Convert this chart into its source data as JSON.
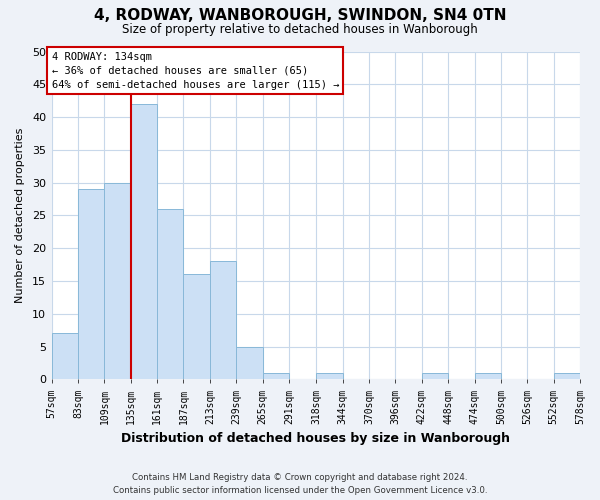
{
  "title": "4, RODWAY, WANBOROUGH, SWINDON, SN4 0TN",
  "subtitle": "Size of property relative to detached houses in Wanborough",
  "xlabel": "Distribution of detached houses by size in Wanborough",
  "ylabel": "Number of detached properties",
  "bar_color": "#cce0f5",
  "bar_edge_color": "#88b8d8",
  "bin_edges": [
    57,
    83,
    109,
    135,
    161,
    187,
    213,
    239,
    265,
    291,
    318,
    344,
    370,
    396,
    422,
    448,
    474,
    500,
    526,
    552,
    578
  ],
  "bin_labels": [
    "57sqm",
    "83sqm",
    "109sqm",
    "135sqm",
    "161sqm",
    "187sqm",
    "213sqm",
    "239sqm",
    "265sqm",
    "291sqm",
    "318sqm",
    "344sqm",
    "370sqm",
    "396sqm",
    "422sqm",
    "448sqm",
    "474sqm",
    "500sqm",
    "526sqm",
    "552sqm",
    "578sqm"
  ],
  "counts": [
    7,
    29,
    30,
    42,
    26,
    16,
    18,
    5,
    1,
    0,
    1,
    0,
    0,
    0,
    1,
    0,
    1,
    0,
    0,
    1
  ],
  "ylim": [
    0,
    50
  ],
  "yticks": [
    0,
    5,
    10,
    15,
    20,
    25,
    30,
    35,
    40,
    45,
    50
  ],
  "property_line_x": 135,
  "annotation_text_line1": "4 RODWAY: 134sqm",
  "annotation_text_line2": "← 36% of detached houses are smaller (65)",
  "annotation_text_line3": "64% of semi-detached houses are larger (115) →",
  "annotation_box_color": "#ffffff",
  "annotation_box_edge_color": "#cc0000",
  "property_line_color": "#cc0000",
  "footer_line1": "Contains HM Land Registry data © Crown copyright and database right 2024.",
  "footer_line2": "Contains public sector information licensed under the Open Government Licence v3.0.",
  "background_color": "#eef2f8",
  "plot_background_color": "#ffffff",
  "grid_color": "#c8d8ea"
}
